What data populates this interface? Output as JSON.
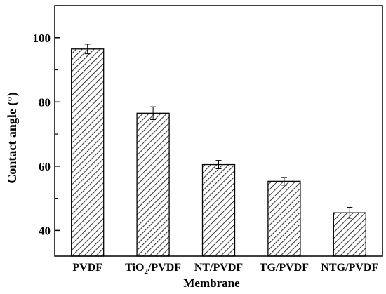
{
  "chart_data": {
    "type": "bar",
    "categories": [
      "PVDF",
      "TiO2/PVDF",
      "NT/PVDF",
      "TG/PVDF",
      "NTG/PVDF"
    ],
    "category_labels": [
      {
        "main": "PVDF"
      },
      {
        "main": "TiO",
        "sub": "2",
        "tail": "/PVDF"
      },
      {
        "main": "NT/PVDF"
      },
      {
        "main": "TG/PVDF"
      },
      {
        "main": "NTG/PVDF"
      }
    ],
    "values": [
      96.5,
      76.5,
      60.5,
      55.3,
      45.5
    ],
    "errors": [
      1.5,
      2.0,
      1.3,
      1.2,
      1.7
    ],
    "xlabel": "Membrane",
    "ylabel": "Contact angle (°)",
    "ylim": [
      32,
      110
    ],
    "yticks": [
      40,
      60,
      80,
      100
    ],
    "yminor_ticks": [
      50,
      70,
      90,
      110
    ],
    "grid": false,
    "colors": {
      "bar_fill": "#ffffff",
      "bar_hatch": "#000000",
      "axis": "#000000"
    }
  }
}
